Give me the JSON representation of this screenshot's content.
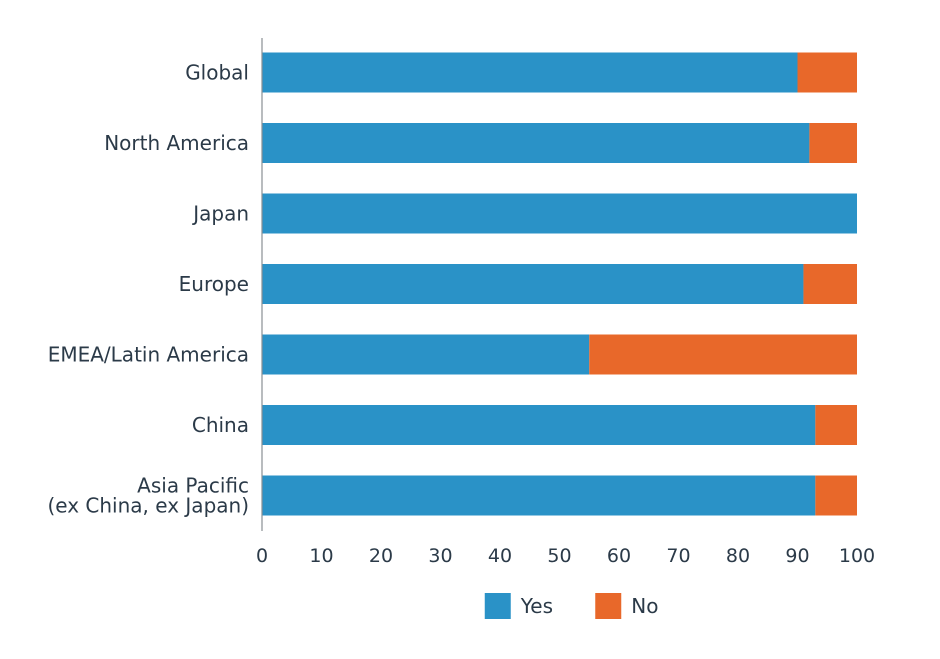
{
  "chart_data": {
    "type": "bar",
    "orientation": "horizontal",
    "stacked": true,
    "categories": [
      [
        "Global"
      ],
      [
        "North America"
      ],
      [
        "Japan"
      ],
      [
        "Europe"
      ],
      [
        "EMEA/Latin America"
      ],
      [
        "China"
      ],
      [
        "Asia Pacific",
        "(ex China, ex Japan)"
      ]
    ],
    "series": [
      {
        "name": "Yes",
        "color": "#2a92c7",
        "values": [
          90,
          92,
          100,
          91,
          55,
          93,
          93
        ]
      },
      {
        "name": "No",
        "color": "#e8682a",
        "values": [
          10,
          8,
          0,
          9,
          45,
          7,
          7
        ]
      }
    ],
    "xlim": [
      0,
      100
    ],
    "xticks": [
      0,
      10,
      20,
      30,
      40,
      50,
      60,
      70,
      80,
      90,
      100
    ],
    "title": "",
    "xlabel": "",
    "ylabel": "",
    "grid": false,
    "legend_position": "bottom-center"
  }
}
